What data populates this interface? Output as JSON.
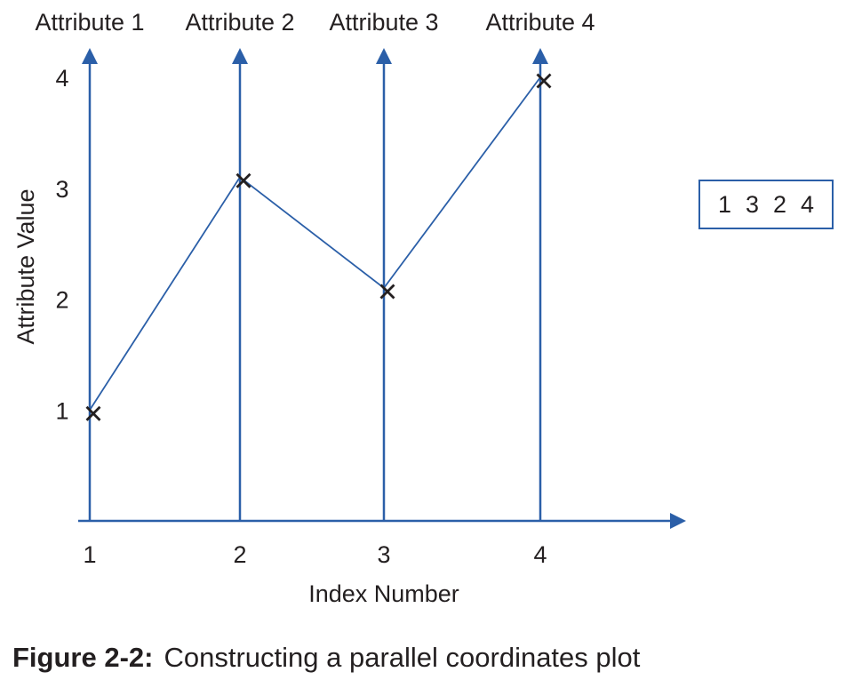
{
  "chart_data": {
    "type": "line",
    "subtype": "parallel-coordinates",
    "axes": [
      "Attribute 1",
      "Attribute 2",
      "Attribute 3",
      "Attribute 4"
    ],
    "x": [
      1,
      2,
      3,
      4
    ],
    "x_ticks": [
      "1",
      "2",
      "3",
      "4"
    ],
    "y_ticks": [
      "1",
      "2",
      "3",
      "4"
    ],
    "values": [
      1,
      3.1,
      2.1,
      4
    ],
    "xlabel": "Index Number",
    "ylabel": "Attribute Value",
    "ylim": [
      0,
      4
    ],
    "marker": "x",
    "colors": {
      "axis": "#2b5fa8",
      "line": "#2b5fa8",
      "marker": "#231f20"
    }
  },
  "record": [
    "1",
    "3",
    "2",
    "4"
  ],
  "caption": {
    "label": "Figure 2-2:",
    "text": "Constructing a parallel coordinates plot"
  }
}
